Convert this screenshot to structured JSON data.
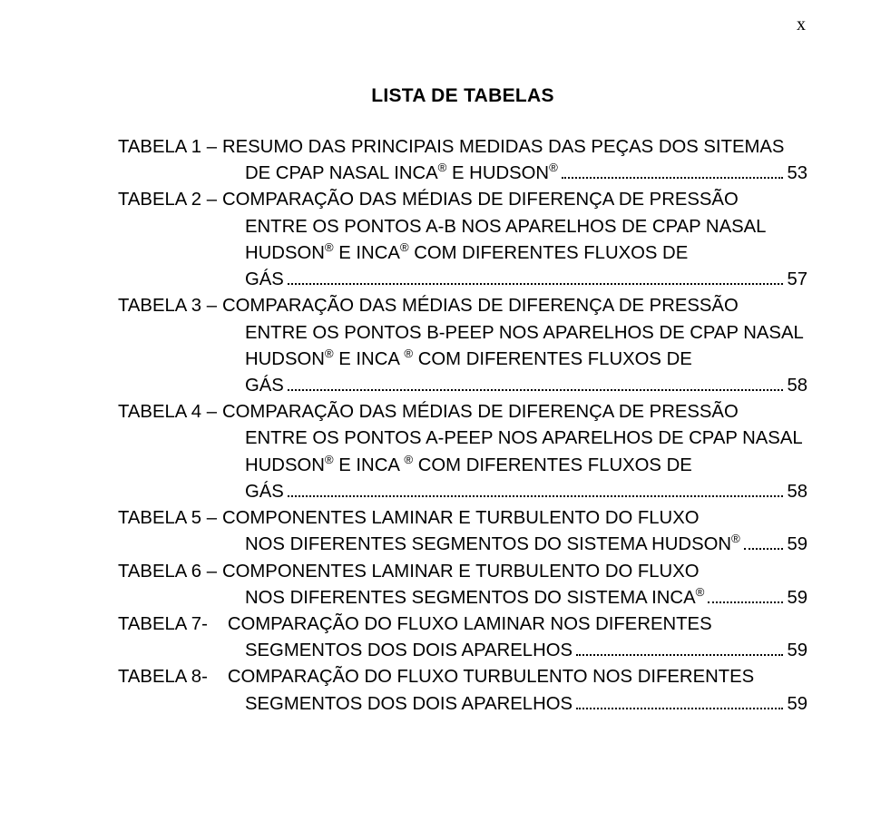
{
  "page_marker": "x",
  "header_title": "LISTA DE TABELAS",
  "colors": {
    "text": "#000000",
    "background": "#ffffff",
    "leader": "#000000"
  },
  "typography": {
    "body_font": "Arial, Helvetica, sans-serif",
    "marker_font": "Times New Roman, serif",
    "title_fontsize_pt": 16,
    "body_fontsize_pt": 15,
    "title_weight": "bold"
  },
  "entries": [
    {
      "label": "TABELA 1 –",
      "lines": [
        "RESUMO DAS PRINCIPAIS MEDIDAS DAS PEÇAS DOS SITEMAS",
        "DE CPAP NASAL INCA® E HUDSON®"
      ],
      "page": "53"
    },
    {
      "label": "TABELA 2 –",
      "lines": [
        "COMPARAÇÃO DAS MÉDIAS DE DIFERENÇA DE  PRESSÃO",
        "ENTRE OS PONTOS A-B NOS APARELHOS DE CPAP NASAL",
        "HUDSON® E INCA® COM DIFERENTES  FLUXOS DE",
        "GÁS"
      ],
      "page": "57"
    },
    {
      "label": "TABELA 3 –",
      "lines": [
        "COMPARAÇÃO DAS MÉDIAS DE DIFERENÇA DE  PRESSÃO",
        "ENTRE OS PONTOS B-PEEP NOS APARELHOS DE CPAP NASAL",
        "HUDSON® E  INCA ® COM DIFERENTES FLUXOS DE",
        "GÁS"
      ],
      "page": "58"
    },
    {
      "label": "TABELA 4 –",
      "lines": [
        "COMPARAÇÃO DAS MÉDIAS DE DIFERENÇA DE  PRESSÃO",
        "ENTRE OS PONTOS A-PEEP NOS APARELHOS DE CPAP NASAL",
        "HUDSON® E  INCA ® COM DIFERENTES FLUXOS DE",
        "GÁS"
      ],
      "page": "58"
    },
    {
      "label": "TABELA 5 –",
      "lines": [
        "COMPONENTES LAMINAR E TURBULENTO DO FLUXO",
        "NOS DIFERENTES SEGMENTOS DO SISTEMA HUDSON®"
      ],
      "page": "59"
    },
    {
      "label": "TABELA 6 –",
      "lines": [
        "COMPONENTES LAMINAR E TURBULENTO DO FLUXO",
        "NOS DIFERENTES SEGMENTOS DO SISTEMA INCA®"
      ],
      "page": "59"
    },
    {
      "label": "TABELA 7-",
      "lines": [
        "COMPARAÇÃO DO FLUXO LAMINAR NOS DIFERENTES",
        "SEGMENTOS DOS DOIS APARELHOS"
      ],
      "page": "59"
    },
    {
      "label": "TABELA 8-",
      "lines": [
        "COMPARAÇÃO DO FLUXO TURBULENTO NOS DIFERENTES",
        "SEGMENTOS DOS DOIS APARELHOS"
      ],
      "page": "59"
    }
  ]
}
